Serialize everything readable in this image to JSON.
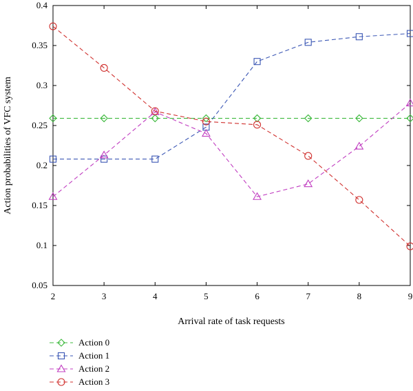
{
  "chart_data": {
    "type": "line",
    "title": "",
    "xlabel": "Arrival rate of task requests",
    "ylabel": "Action probabilities of VFC system",
    "x": [
      2,
      3,
      4,
      5,
      6,
      7,
      8,
      9
    ],
    "xlim": [
      2,
      9
    ],
    "ylim": [
      0.05,
      0.4
    ],
    "xticks": [
      "2",
      "3",
      "4",
      "5",
      "6",
      "7",
      "8",
      "9"
    ],
    "yticks": [
      "0.05",
      "0.1",
      "0.15",
      "0.2",
      "0.25",
      "0.3",
      "0.35",
      "0.4"
    ],
    "grid": false,
    "legend_position": "bottom-left, below plot",
    "series": [
      {
        "name": "Action 0",
        "color": "#3cb93c",
        "marker": "diamond",
        "values": [
          0.259,
          0.259,
          0.259,
          0.259,
          0.259,
          0.259,
          0.259,
          0.259
        ]
      },
      {
        "name": "Action 1",
        "color": "#3a56b4",
        "marker": "square",
        "values": [
          0.208,
          0.208,
          0.208,
          0.248,
          0.33,
          0.354,
          0.361,
          0.365
        ]
      },
      {
        "name": "Action 2",
        "color": "#c03cc0",
        "marker": "triangle",
        "values": [
          0.161,
          0.213,
          0.267,
          0.24,
          0.161,
          0.177,
          0.224,
          0.278
        ]
      },
      {
        "name": "Action 3",
        "color": "#d0302e",
        "marker": "circle",
        "values": [
          0.374,
          0.322,
          0.268,
          0.255,
          0.251,
          0.212,
          0.157,
          0.099
        ]
      }
    ]
  }
}
